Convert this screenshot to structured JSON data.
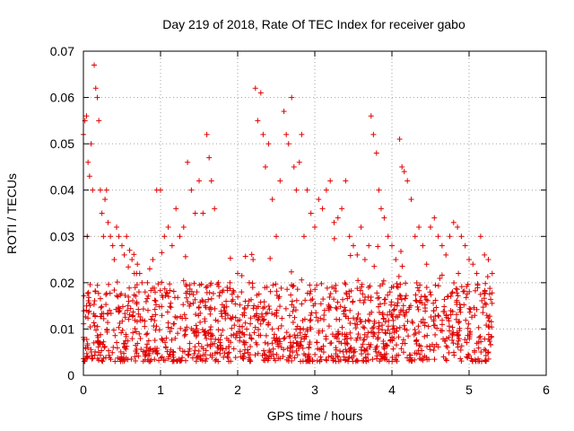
{
  "chart_data": {
    "type": "scatter",
    "title": "Day 219 of 2018, Rate Of TEC Index for receiver gabo",
    "xlabel": "GPS time / hours",
    "ylabel": "ROTI / TECUs",
    "xlim": [
      0,
      6
    ],
    "ylim": [
      0,
      0.07
    ],
    "grid": true,
    "marker": "+",
    "color": "#e00000",
    "x_ticks": [
      {
        "value": 0,
        "label": "0"
      },
      {
        "value": 1,
        "label": "1"
      },
      {
        "value": 2,
        "label": "2"
      },
      {
        "value": 3,
        "label": "3"
      },
      {
        "value": 4,
        "label": "4"
      },
      {
        "value": 5,
        "label": "5"
      },
      {
        "value": 6,
        "label": "6"
      }
    ],
    "y_ticks": [
      {
        "value": 0,
        "label": "0"
      },
      {
        "value": 0.01,
        "label": "0.01"
      },
      {
        "value": 0.02,
        "label": "0.02"
      },
      {
        "value": 0.03,
        "label": "0.03"
      },
      {
        "value": 0.04,
        "label": "0.04"
      },
      {
        "value": 0.05,
        "label": "0.05"
      },
      {
        "value": 0.06,
        "label": "0.06"
      },
      {
        "value": 0.07,
        "label": "0.07"
      }
    ],
    "series": [
      {
        "name": "ROTI",
        "x": [
          0.0,
          0.02,
          0.04,
          0.05,
          0.06,
          0.08,
          0.1,
          0.12,
          0.14,
          0.16,
          0.18,
          0.2,
          0.22,
          0.24,
          0.26,
          0.28,
          0.3,
          0.32,
          0.35,
          0.38,
          0.4,
          0.43,
          0.46,
          0.5,
          0.53,
          0.56,
          0.6,
          0.63,
          0.66,
          0.7,
          0.73,
          0.76,
          0.8,
          0.83,
          0.86,
          0.9,
          0.95,
          1.0,
          1.05,
          1.1,
          1.15,
          1.2,
          1.25,
          1.3,
          1.35,
          1.4,
          1.45,
          1.5,
          1.55,
          1.6,
          1.63,
          1.66,
          1.7,
          1.75,
          1.8,
          1.85,
          1.9,
          1.95,
          2.0,
          2.05,
          2.1,
          2.15,
          2.2,
          2.23,
          2.26,
          2.3,
          2.33,
          2.36,
          2.4,
          2.45,
          2.5,
          2.55,
          2.6,
          2.63,
          2.66,
          2.7,
          2.73,
          2.76,
          2.8,
          2.83,
          2.86,
          2.9,
          2.95,
          3.0,
          3.05,
          3.1,
          3.15,
          3.2,
          3.25,
          3.3,
          3.35,
          3.4,
          3.45,
          3.5,
          3.55,
          3.6,
          3.65,
          3.7,
          3.73,
          3.76,
          3.8,
          3.83,
          3.86,
          3.9,
          3.95,
          4.0,
          4.05,
          4.1,
          4.13,
          4.16,
          4.2,
          4.25,
          4.3,
          4.35,
          4.4,
          4.45,
          4.5,
          4.55,
          4.6,
          4.65,
          4.7,
          4.75,
          4.8,
          4.85,
          4.9,
          4.95,
          5.0,
          5.05,
          5.1,
          5.15,
          5.2,
          5.25,
          5.3
        ],
        "y": [
          0.052,
          0.055,
          0.056,
          0.03,
          0.046,
          0.043,
          0.05,
          0.04,
          0.067,
          0.062,
          0.06,
          0.055,
          0.04,
          0.035,
          0.03,
          0.038,
          0.04,
          0.033,
          0.03,
          0.028,
          0.025,
          0.032,
          0.03,
          0.028,
          0.026,
          0.03,
          0.027,
          0.025,
          0.022,
          0.024,
          0.022,
          0.02,
          0.018,
          0.02,
          0.023,
          0.025,
          0.04,
          0.04,
          0.03,
          0.032,
          0.028,
          0.036,
          0.03,
          0.032,
          0.046,
          0.04,
          0.035,
          0.042,
          0.035,
          0.052,
          0.047,
          0.042,
          0.036,
          0.02,
          0.018,
          0.016,
          0.02,
          0.018,
          0.022,
          0.018,
          0.016,
          0.02,
          0.025,
          0.062,
          0.055,
          0.061,
          0.052,
          0.045,
          0.05,
          0.038,
          0.03,
          0.042,
          0.057,
          0.052,
          0.05,
          0.06,
          0.045,
          0.04,
          0.046,
          0.052,
          0.03,
          0.04,
          0.035,
          0.032,
          0.038,
          0.036,
          0.04,
          0.042,
          0.033,
          0.034,
          0.036,
          0.042,
          0.03,
          0.028,
          0.026,
          0.032,
          0.025,
          0.028,
          0.056,
          0.052,
          0.048,
          0.04,
          0.036,
          0.034,
          0.03,
          0.028,
          0.025,
          0.051,
          0.045,
          0.044,
          0.042,
          0.038,
          0.03,
          0.032,
          0.028,
          0.024,
          0.032,
          0.034,
          0.03,
          0.028,
          0.026,
          0.03,
          0.033,
          0.032,
          0.03,
          0.028,
          0.025,
          0.024,
          0.022,
          0.03,
          0.026,
          0.025,
          0.022
        ],
        "dense_band": {
          "x_range": [
            0.0,
            5.3
          ],
          "y_range": [
            0.003,
            0.02
          ]
        }
      }
    ]
  }
}
